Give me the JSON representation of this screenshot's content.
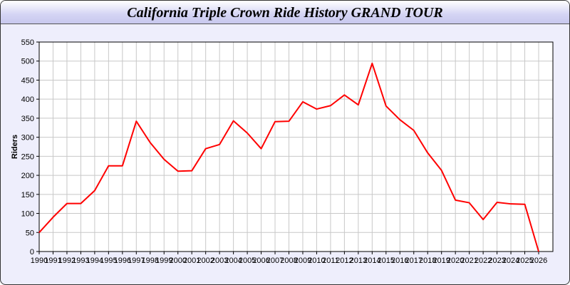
{
  "chart_data": {
    "type": "line",
    "title": "California Triple Crown Ride History GRAND TOUR",
    "xlabel": "",
    "ylabel": "Riders",
    "ylim": [
      0,
      550
    ],
    "yticks": [
      0,
      50,
      100,
      150,
      200,
      250,
      300,
      350,
      400,
      450,
      500,
      550
    ],
    "grid": true,
    "series_color": "#ff0000",
    "x": [
      "1990",
      "1991",
      "1992",
      "1993",
      "1994",
      "1995",
      "1996",
      "1997",
      "1998",
      "1999",
      "2000",
      "2001",
      "2002",
      "2003",
      "2004",
      "2005",
      "2006",
      "2007",
      "2008",
      "2009",
      "2010",
      "2011",
      "2012",
      "2013",
      "2014",
      "2015",
      "2016",
      "2017",
      "2018",
      "2019",
      "2020",
      "2021",
      "2022",
      "2023",
      "2024",
      "2025",
      "2026"
    ],
    "values": [
      50,
      90,
      126,
      126,
      160,
      225,
      225,
      342,
      286,
      242,
      211,
      212,
      270,
      281,
      343,
      311,
      270,
      341,
      342,
      393,
      374,
      383,
      411,
      385,
      494,
      382,
      346,
      318,
      259,
      213,
      135,
      128,
      84,
      129,
      125,
      124,
      0
    ]
  }
}
